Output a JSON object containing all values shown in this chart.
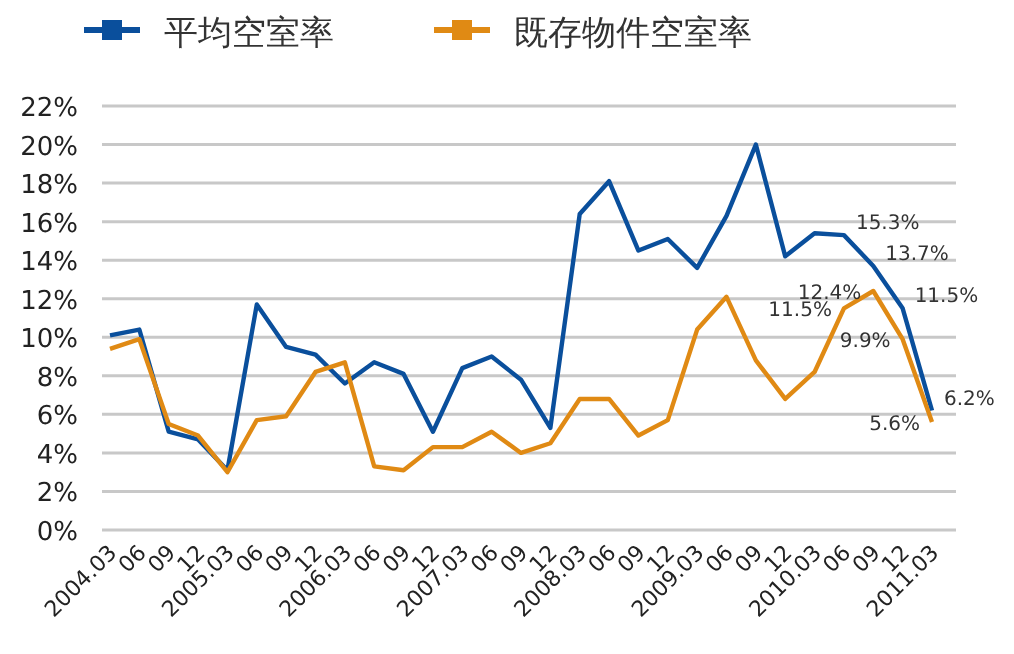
{
  "chart_data": {
    "type": "line",
    "categories": [
      "2004.03",
      "06",
      "09",
      "12",
      "2005.03",
      "06",
      "09",
      "12",
      "2006.03",
      "06",
      "09",
      "12",
      "2007.03",
      "06",
      "09",
      "12",
      "2008.03",
      "06",
      "09",
      "12",
      "2009.03",
      "06",
      "09",
      "12",
      "2010.03",
      "06",
      "09",
      "12",
      "2011.03"
    ],
    "series": [
      {
        "name": "平均空室率",
        "color": "#0a4f9c",
        "values": [
          10.1,
          10.4,
          5.1,
          4.7,
          3.1,
          11.7,
          9.5,
          9.1,
          7.6,
          8.7,
          8.1,
          5.1,
          8.4,
          9.0,
          7.8,
          5.3,
          16.4,
          18.1,
          14.5,
          15.1,
          13.6,
          16.3,
          20.0,
          14.2,
          15.4,
          15.3,
          13.7,
          11.5,
          6.2
        ],
        "value_labels": [
          null,
          null,
          null,
          null,
          null,
          null,
          null,
          null,
          null,
          null,
          null,
          null,
          null,
          null,
          null,
          null,
          null,
          null,
          null,
          null,
          null,
          null,
          null,
          null,
          null,
          "15.3%",
          "13.7%",
          "11.5%",
          "6.2%"
        ]
      },
      {
        "name": "既存物件空室率",
        "color": "#e08a14",
        "values": [
          9.4,
          9.9,
          5.5,
          4.9,
          3.0,
          5.7,
          5.9,
          8.2,
          8.7,
          3.3,
          3.1,
          4.3,
          4.3,
          5.1,
          4.0,
          4.5,
          6.8,
          6.8,
          4.9,
          5.7,
          10.4,
          12.1,
          8.8,
          6.8,
          8.2,
          11.5,
          12.4,
          9.9,
          5.6
        ],
        "value_labels": [
          null,
          null,
          null,
          null,
          null,
          null,
          null,
          null,
          null,
          null,
          null,
          null,
          null,
          null,
          null,
          null,
          null,
          null,
          null,
          null,
          null,
          null,
          null,
          null,
          null,
          "11.5%",
          "12.4%",
          "9.9%",
          "5.6%"
        ]
      }
    ],
    "ylim": [
      0,
      22
    ],
    "yticks": [
      {
        "value": 0,
        "label": "0%"
      },
      {
        "value": 2,
        "label": "2%"
      },
      {
        "value": 4,
        "label": "4%"
      },
      {
        "value": 6,
        "label": "6%"
      },
      {
        "value": 8,
        "label": "8%"
      },
      {
        "value": 10,
        "label": "10%"
      },
      {
        "value": 12,
        "label": "12%"
      },
      {
        "value": 14,
        "label": "14%"
      },
      {
        "value": 16,
        "label": "16%"
      },
      {
        "value": 18,
        "label": "18%"
      },
      {
        "value": 20,
        "label": "20%"
      },
      {
        "value": 22,
        "label": "22%"
      }
    ],
    "grid": "y",
    "legend": "top",
    "line_style": "solid"
  }
}
